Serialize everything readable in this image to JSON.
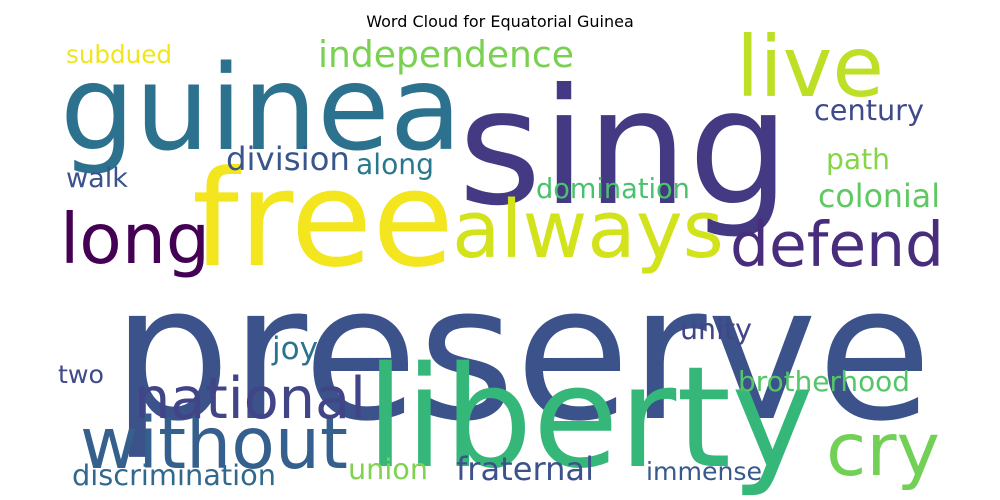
{
  "title": "Word Cloud for Equatorial Guinea",
  "words": [
    {
      "text": "preserve",
      "color": "#3b528b"
    },
    {
      "text": "sing",
      "color": "#443983"
    },
    {
      "text": "guinea",
      "color": "#2c728e"
    },
    {
      "text": "liberty",
      "color": "#35b779"
    },
    {
      "text": "free",
      "color": "#f3e51e"
    },
    {
      "text": "always",
      "color": "#d2e21b"
    },
    {
      "text": "defend",
      "color": "#472d7b"
    },
    {
      "text": "long",
      "color": "#440154"
    },
    {
      "text": "without",
      "color": "#355f8d"
    },
    {
      "text": "live",
      "color": "#bddf26"
    },
    {
      "text": "cry",
      "color": "#73d056"
    },
    {
      "text": "national",
      "color": "#414487"
    },
    {
      "text": "independence",
      "color": "#7ad151"
    },
    {
      "text": "subdued",
      "color": "#f1e51d"
    },
    {
      "text": "century",
      "color": "#3e4a89"
    },
    {
      "text": "division",
      "color": "#39568c"
    },
    {
      "text": "along",
      "color": "#2a788e"
    },
    {
      "text": "walk",
      "color": "#3b528b"
    },
    {
      "text": "path",
      "color": "#86d549"
    },
    {
      "text": "domination",
      "color": "#4ac16d"
    },
    {
      "text": "colonial",
      "color": "#5ec962"
    },
    {
      "text": "unity",
      "color": "#404688"
    },
    {
      "text": "joy",
      "color": "#2c728e"
    },
    {
      "text": "two",
      "color": "#3e4a89"
    },
    {
      "text": "brotherhood",
      "color": "#54c568"
    },
    {
      "text": "discrimination",
      "color": "#31688e"
    },
    {
      "text": "union",
      "color": "#7fd34e"
    },
    {
      "text": "fraternal",
      "color": "#3b528b"
    },
    {
      "text": "immense",
      "color": "#38598c"
    }
  ]
}
